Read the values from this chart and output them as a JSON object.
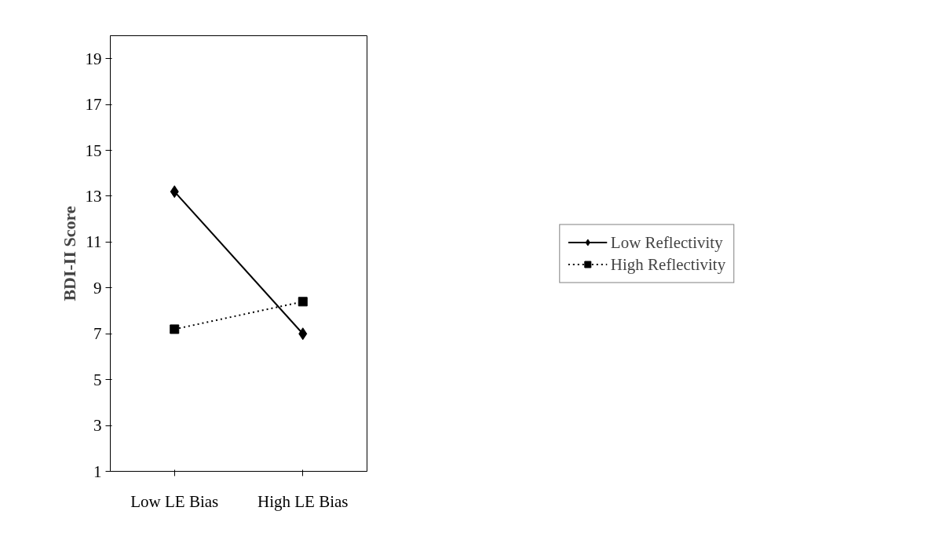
{
  "chart_data": {
    "type": "line",
    "ylabel": "BDI-II Score",
    "categories": [
      "Low LE Bias",
      "High LE Bias"
    ],
    "series": [
      {
        "name": "Low Reflectivity",
        "color": "#000000",
        "values": [
          13.2,
          7.0
        ],
        "marker": "diamond",
        "line_style": "solid"
      },
      {
        "name": "High Reflectivity",
        "color": "#000000",
        "values": [
          7.2,
          8.4
        ],
        "marker": "square",
        "line_style": "dotted"
      }
    ],
    "ylim": [
      1,
      20
    ],
    "yticks": [
      1,
      3,
      5,
      7,
      9,
      11,
      13,
      15,
      17,
      19
    ],
    "grid": false,
    "legend": "right"
  }
}
